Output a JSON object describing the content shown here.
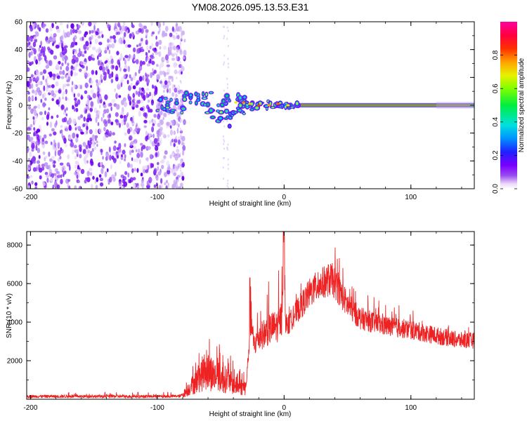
{
  "title": "YM08.2026.095.13.53.E31",
  "chart_data": [
    {
      "type": "heatmap",
      "xlabel": "Height of straight line (km)",
      "ylabel": "Frequency (Hz)",
      "xlim": [
        -203,
        150
      ],
      "ylim": [
        -60,
        60
      ],
      "x_ticks": [
        "-200",
        "-100",
        "0",
        "100"
      ],
      "x_tick_values": [
        -200,
        -100,
        0,
        100
      ],
      "y_ticks": [
        "-60",
        "-40",
        "-20",
        "0",
        "20",
        "40",
        "60"
      ],
      "y_tick_values": [
        -60,
        -40,
        -20,
        0,
        20,
        40,
        60
      ],
      "colorbar": {
        "label": "Normalized spectral amplitude",
        "range": [
          0,
          1
        ],
        "ticks": [
          "0.0",
          "0.2",
          "0.4",
          "0.6",
          "0.8"
        ],
        "tick_values": [
          0.0,
          0.2,
          0.4,
          0.6,
          0.8
        ]
      },
      "features": {
        "noise_region_km": [
          -203,
          -78
        ],
        "band_start_km": -100,
        "band_end_km": 150,
        "band_center_hz": 0,
        "band_peak_amplitude": 0.95
      }
    },
    {
      "type": "line",
      "xlabel": "Height of straight line (km)",
      "ylabel": "SNR (10 * v/v)",
      "xlim": [
        -203,
        150
      ],
      "ylim": [
        0,
        8700
      ],
      "x_ticks": [
        "-200",
        "-100",
        "0",
        "100"
      ],
      "x_tick_values": [
        -200,
        -100,
        0,
        100
      ],
      "y_ticks": [
        "2000",
        "4000",
        "6000",
        "8000"
      ],
      "y_tick_values": [
        2000,
        4000,
        6000,
        8000
      ],
      "color": "#ee2222",
      "series": [
        {
          "name": "SNR",
          "envelope_x": [
            -203,
            -150,
            -100,
            -82,
            -78,
            -70,
            -62,
            -55,
            -45,
            -38,
            -30,
            -28,
            -26,
            -24,
            -20,
            -10,
            -5,
            -2,
            -1,
            0,
            1,
            3,
            8,
            15,
            20,
            25,
            30,
            35,
            38,
            42,
            50,
            60,
            80,
            100,
            120,
            140,
            150
          ],
          "envelope_y": [
            150,
            150,
            150,
            160,
            350,
            900,
            1500,
            1200,
            1000,
            700,
            600,
            2500,
            4200,
            2800,
            3200,
            3700,
            3800,
            4200,
            6500,
            8700,
            4000,
            3800,
            4400,
            5000,
            5500,
            5800,
            6000,
            6200,
            6200,
            5800,
            4900,
            4200,
            3800,
            3600,
            3300,
            3050,
            3050
          ]
        }
      ]
    }
  ]
}
